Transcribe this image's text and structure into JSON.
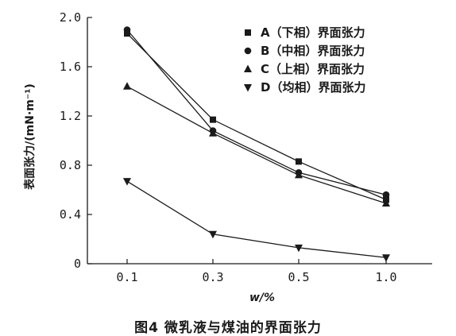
{
  "figure": {
    "caption": "图4   微乳液与煤油的界面张力"
  },
  "chart_data": {
    "type": "line",
    "categories": [
      "0.1",
      "0.3",
      "0.5",
      "1.0"
    ],
    "xlabel": "w/%",
    "ylabel": "表面张力/(mN·m⁻¹)",
    "ylim": [
      0,
      2.0
    ],
    "yticks": [
      "0",
      "0.4",
      "0.8",
      "1.2",
      "1.6",
      "2.0"
    ],
    "grid": false,
    "legend_position": "top-right",
    "series": [
      {
        "name": "A（下相）界面张力",
        "marker": "square",
        "values": [
          1.87,
          1.17,
          0.83,
          0.52
        ]
      },
      {
        "name": "B（中相）界面张力",
        "marker": "circle",
        "values": [
          1.9,
          1.08,
          0.74,
          0.56
        ]
      },
      {
        "name": "C（上相）界面张力",
        "marker": "triangle-up",
        "values": [
          1.44,
          1.06,
          0.72,
          0.49
        ]
      },
      {
        "name": "D（均相）界面张力",
        "marker": "triangle-down",
        "values": [
          0.67,
          0.24,
          0.13,
          0.05
        ]
      }
    ],
    "colors": {
      "ink": "#1a1a1a"
    }
  }
}
